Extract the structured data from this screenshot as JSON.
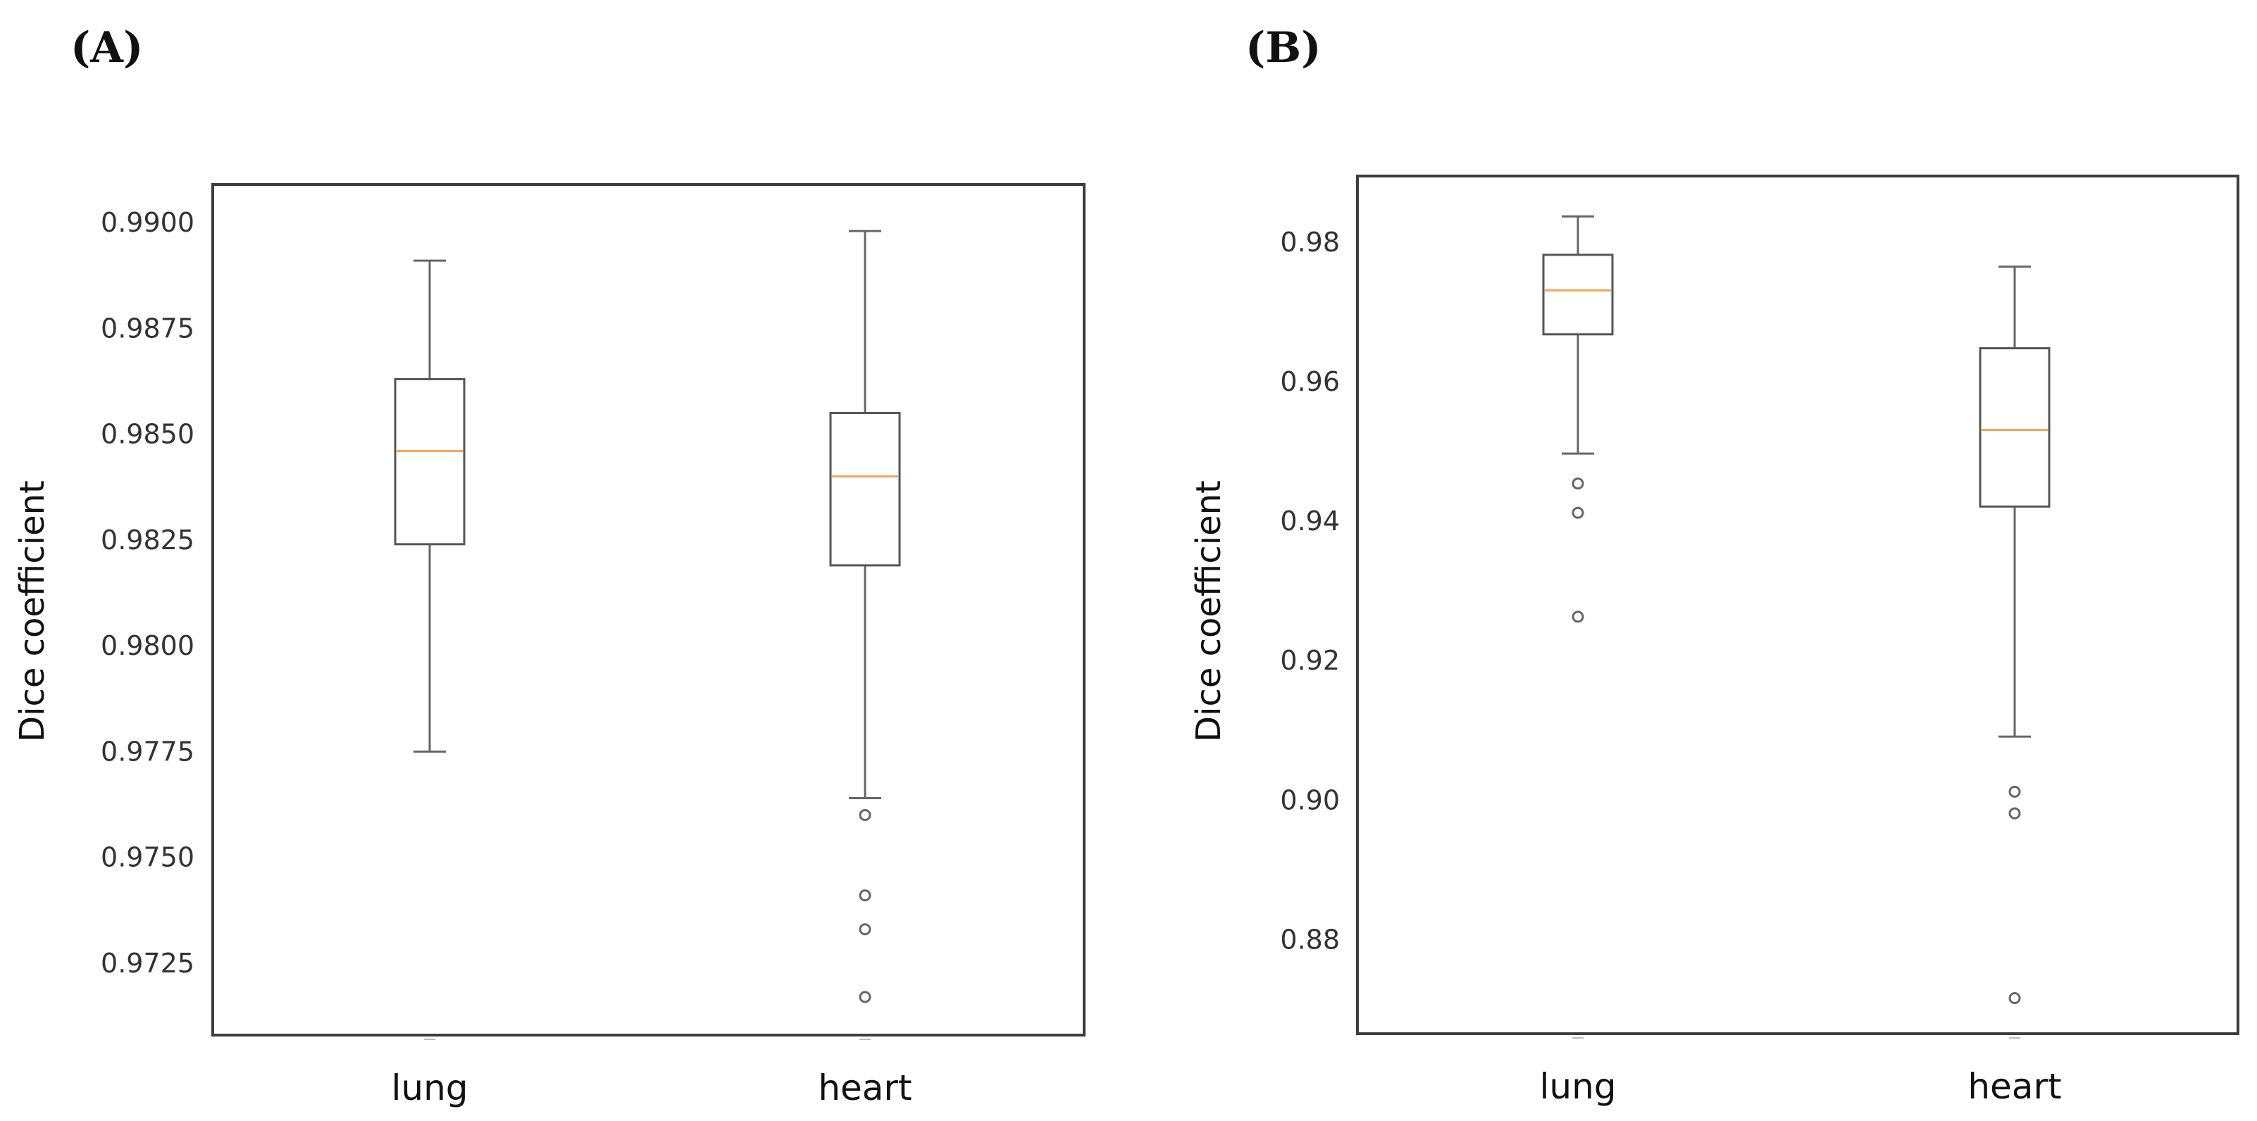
{
  "colors": {
    "median": "#f5a35a",
    "frame": "#3d3d3d",
    "box": "#555555"
  },
  "chart_data": [
    {
      "type": "box",
      "panel_label": "(A)",
      "ylabel": "Dice coefficient",
      "xlabel": "",
      "ylim": [
        0.9708,
        0.9909
      ],
      "yticks": [
        0.9725,
        0.975,
        0.9775,
        0.98,
        0.9825,
        0.985,
        0.9875,
        0.99
      ],
      "ytick_labels": [
        "0.9725",
        "0.9750",
        "0.9775",
        "0.9800",
        "0.9825",
        "0.9850",
        "0.9875",
        "0.9900"
      ],
      "categories": [
        "lung",
        "heart"
      ],
      "boxes": [
        {
          "name": "lung",
          "whislo": 0.9775,
          "q1": 0.9824,
          "med": 0.9846,
          "q3": 0.9863,
          "whishi": 0.9891,
          "fliers": []
        },
        {
          "name": "heart",
          "whislo": 0.9764,
          "q1": 0.9819,
          "med": 0.984,
          "q3": 0.9855,
          "whishi": 0.9898,
          "fliers": [
            0.976,
            0.9741,
            0.9733,
            0.9717
          ]
        }
      ]
    },
    {
      "type": "box",
      "panel_label": "(B)",
      "ylabel": "Dice coefficient",
      "xlabel": "",
      "ylim": [
        0.8665,
        0.9895
      ],
      "yticks": [
        0.88,
        0.9,
        0.92,
        0.94,
        0.96,
        0.98
      ],
      "ytick_labels": [
        "0.88",
        "0.90",
        "0.92",
        "0.94",
        "0.96",
        "0.98"
      ],
      "categories": [
        "lung",
        "heart"
      ],
      "boxes": [
        {
          "name": "lung",
          "whislo": 0.9497,
          "q1": 0.9668,
          "med": 0.9731,
          "q3": 0.9782,
          "whishi": 0.9837,
          "fliers": [
            0.9454,
            0.9412,
            0.9263
          ]
        },
        {
          "name": "heart",
          "whislo": 0.9091,
          "q1": 0.9421,
          "med": 0.9531,
          "q3": 0.9648,
          "whishi": 0.9765,
          "fliers": [
            0.9012,
            0.8981,
            0.8716
          ]
        }
      ]
    }
  ]
}
